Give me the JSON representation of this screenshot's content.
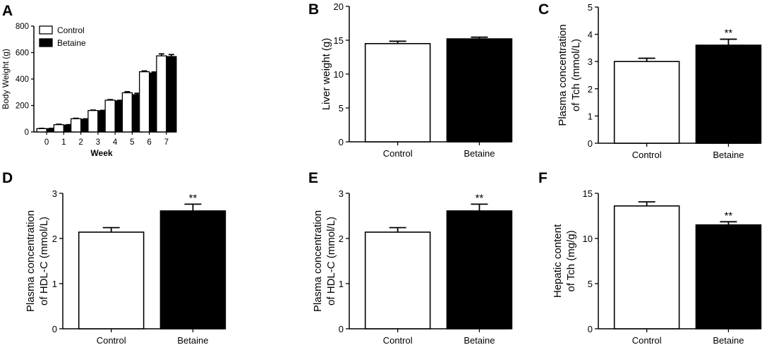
{
  "colors": {
    "control_fill": "#ffffff",
    "betaine_fill": "#000000",
    "axis": "#000000"
  },
  "chart_data": [
    {
      "panel": "A",
      "type": "bar",
      "xlabel": "Week",
      "ylabel": "Body Weight (g)",
      "ylim": [
        0,
        800
      ],
      "yticks": [
        0,
        200,
        400,
        600,
        800
      ],
      "categories": [
        "0",
        "1",
        "2",
        "3",
        "4",
        "5",
        "6",
        "7"
      ],
      "legend_position": "top-left",
      "series": [
        {
          "name": "Control",
          "fill": "white",
          "values": [
            25,
            55,
            100,
            162,
            240,
            296,
            455,
            575
          ],
          "errors": [
            2,
            3,
            3,
            3,
            4,
            8,
            6,
            15
          ]
        },
        {
          "name": "Betaine",
          "fill": "black",
          "values": [
            25,
            52,
            96,
            160,
            235,
            282,
            445,
            570
          ],
          "errors": [
            2,
            3,
            3,
            3,
            4,
            10,
            8,
            15
          ]
        }
      ],
      "significance": [
        "",
        "",
        "",
        "",
        "",
        "",
        "",
        ""
      ]
    },
    {
      "panel": "B",
      "type": "bar",
      "xlabel": "",
      "ylabel": "Liver weight (g)",
      "ylim": [
        0,
        20
      ],
      "yticks": [
        0,
        5,
        10,
        15,
        20
      ],
      "categories": [
        "Control",
        "Betaine"
      ],
      "fills": [
        "white",
        "black"
      ],
      "values": [
        14.5,
        15.2
      ],
      "errors": [
        0.35,
        0.25
      ],
      "significance": [
        "",
        ""
      ]
    },
    {
      "panel": "C",
      "type": "bar",
      "xlabel": "",
      "ylabel": [
        "Plasma concentration",
        "of Tch (mmol/L)"
      ],
      "ylim": [
        0,
        5
      ],
      "yticks": [
        0,
        1,
        2,
        3,
        4,
        5
      ],
      "categories": [
        "Control",
        "Betaine"
      ],
      "fills": [
        "white",
        "black"
      ],
      "values": [
        3.0,
        3.6
      ],
      "errors": [
        0.12,
        0.22
      ],
      "significance": [
        "",
        "**"
      ]
    },
    {
      "panel": "D",
      "type": "bar",
      "xlabel": "",
      "ylabel": [
        "Plasma concentration",
        "of HDL-C (mmol/L)"
      ],
      "ylim": [
        0,
        3
      ],
      "yticks": [
        0,
        1,
        2,
        3
      ],
      "categories": [
        "Control",
        "Betaine"
      ],
      "fills": [
        "white",
        "black"
      ],
      "values": [
        2.14,
        2.61
      ],
      "errors": [
        0.1,
        0.15
      ],
      "significance": [
        "",
        "**"
      ]
    },
    {
      "panel": "E",
      "type": "bar",
      "xlabel": "",
      "ylabel": [
        "Plasma concentration",
        "of HDL-C (mmol/L)"
      ],
      "ylim": [
        0,
        3
      ],
      "yticks": [
        0,
        1,
        2,
        3
      ],
      "categories": [
        "Control",
        "Betaine"
      ],
      "fills": [
        "white",
        "black"
      ],
      "values": [
        2.14,
        2.61
      ],
      "errors": [
        0.1,
        0.15
      ],
      "significance": [
        "",
        "**"
      ]
    },
    {
      "panel": "F",
      "type": "bar",
      "xlabel": "",
      "ylabel": [
        "Hepatic content",
        "of Tch (mg/g)"
      ],
      "ylim": [
        0,
        15
      ],
      "yticks": [
        0,
        5,
        10,
        15
      ],
      "categories": [
        "Control",
        "Betaine"
      ],
      "fills": [
        "white",
        "black"
      ],
      "values": [
        13.6,
        11.5
      ],
      "errors": [
        0.45,
        0.35
      ],
      "significance": [
        "",
        "**"
      ]
    }
  ]
}
